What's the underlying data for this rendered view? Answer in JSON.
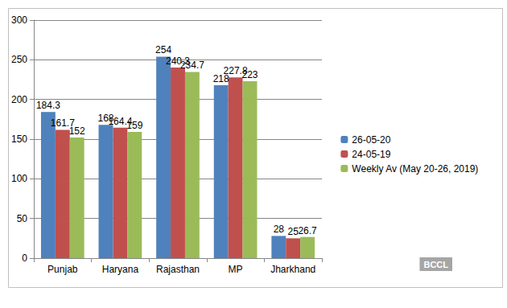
{
  "chart_data": {
    "type": "bar",
    "categories": [
      "Punjab",
      "Haryana",
      "Rajasthan",
      "MP",
      "Jharkhand"
    ],
    "series": [
      {
        "name": "26-05-20",
        "color": "#4f81bd",
        "values": [
          184.3,
          168,
          254,
          218,
          28
        ]
      },
      {
        "name": "24-05-19",
        "color": "#c0504d",
        "values": [
          161.7,
          164.4,
          240.3,
          227.8,
          25
        ]
      },
      {
        "name": "Weekly Av (May 20-26, 2019)",
        "color": "#9bbb59",
        "values": [
          152,
          159,
          234.7,
          223,
          26.7
        ]
      }
    ],
    "ylim": [
      0,
      300
    ],
    "yticks": [
      0,
      50,
      100,
      150,
      200,
      250,
      300
    ],
    "grid": true,
    "legend": "right",
    "data_labels": true,
    "annotation": "BCCL"
  }
}
